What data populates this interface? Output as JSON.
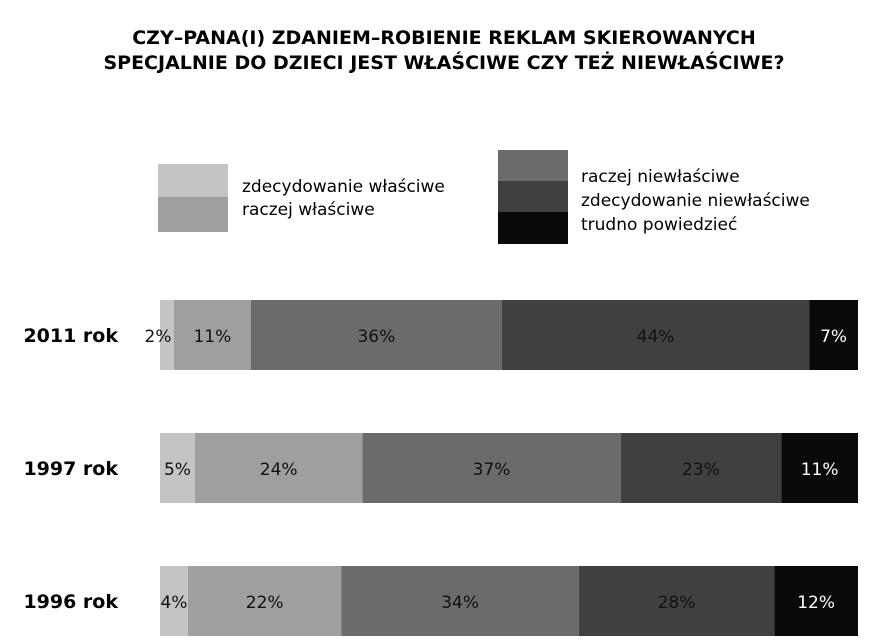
{
  "chart_data": {
    "type": "bar",
    "orientation": "horizontal",
    "stacked": true,
    "title_lines": [
      "CZY–PANA(I) ZDANIEM–ROBIENIE REKLAM SKIEROWANYCH",
      "SPECJALNIE DO DZIECI JEST WŁAŚCIWE CZY TEŻ NIEWŁAŚCIWE?"
    ],
    "categories": [
      "2011 rok",
      "1997 rok",
      "1996 rok"
    ],
    "series": [
      {
        "name": "zdecydowanie właściwe",
        "color": "#c4c4c4",
        "text_color": "#111111",
        "values": [
          2,
          5,
          4
        ],
        "labels": [
          "2%",
          "5%",
          "4%"
        ]
      },
      {
        "name": "raczej właściwe",
        "color": "#9f9f9f",
        "text_color": "#111111",
        "values": [
          11,
          24,
          22
        ],
        "labels": [
          "11%",
          "24%",
          "22%"
        ]
      },
      {
        "name": "raczej niewłaściwe",
        "color": "#6b6b6b",
        "text_color": "#111111",
        "values": [
          36,
          37,
          34
        ],
        "labels": [
          "36%",
          "37%",
          "34%"
        ]
      },
      {
        "name": "zdecydowanie niewłaściwe",
        "color": "#404040",
        "text_color": "#111111",
        "values": [
          44,
          23,
          28
        ],
        "labels": [
          "44%",
          "23%",
          "28%"
        ]
      },
      {
        "name": "trudno powiedzieć",
        "color": "#0a0a0a",
        "text_color": "#ffffff",
        "values": [
          7,
          11,
          12
        ],
        "labels": [
          "7%",
          "11%",
          "12%"
        ]
      }
    ],
    "legend_position": "top",
    "grid": false
  }
}
